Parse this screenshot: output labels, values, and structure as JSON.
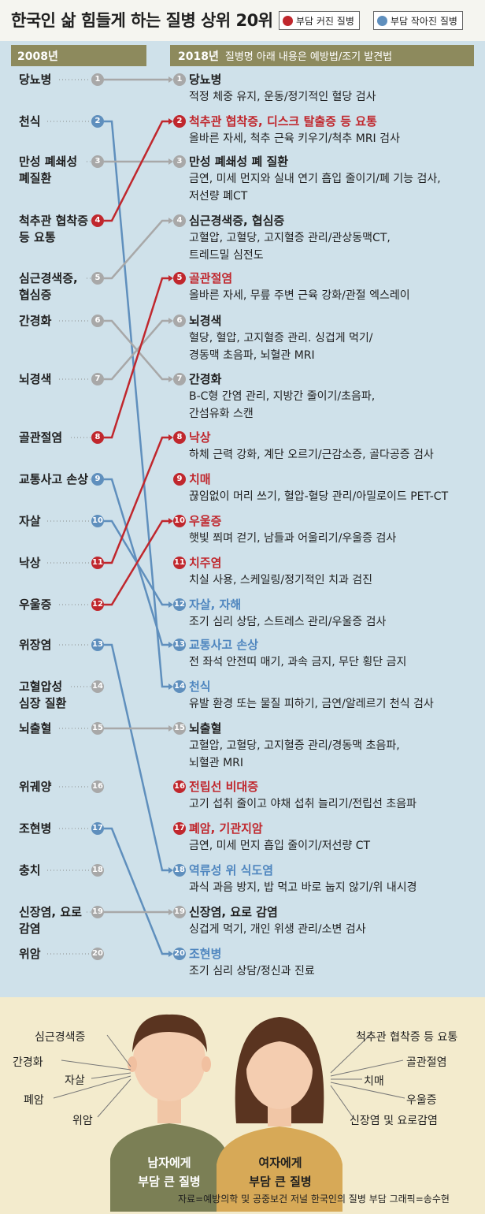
{
  "title": "한국인 삶 힘들게 하는 질병 상위 20위",
  "legend": {
    "increased": {
      "label": "부담 커진 질병",
      "color": "#c0272d"
    },
    "decreased": {
      "label": "부담 작아진 질병",
      "color": "#5f8fbd"
    }
  },
  "header": {
    "left": "2008년",
    "right": "2018년",
    "note": "질병명 아래 내용은 예방법/조기 발견법"
  },
  "colors": {
    "same": "#a8a8a8",
    "increased": "#c0272d",
    "decreased": "#5f8fbd",
    "background": "#cfe1ea",
    "header": "#8d8a5d"
  },
  "rank_2008": [
    {
      "rank": "1",
      "name": "당뇨병",
      "status": "same",
      "to": 1
    },
    {
      "rank": "2",
      "name": "천식",
      "status": "decreased",
      "to": 14
    },
    {
      "rank": "3",
      "name": "만성 폐쇄성\n폐질환",
      "status": "same",
      "to": 3
    },
    {
      "rank": "4",
      "name": "척추관 협착증\n등 요통",
      "status": "increased",
      "to": 2
    },
    {
      "rank": "5",
      "name": "심근경색증,\n협심증",
      "status": "same",
      "to": 4
    },
    {
      "rank": "6",
      "name": "간경화",
      "status": "same",
      "to": 7
    },
    {
      "rank": "7",
      "name": "뇌경색",
      "status": "same",
      "to": 6
    },
    {
      "rank": "8",
      "name": "골관절염",
      "status": "increased",
      "to": 5
    },
    {
      "rank": "9",
      "name": "교통사고 손상",
      "status": "decreased",
      "to": 13
    },
    {
      "rank": "10",
      "name": "자살",
      "status": "decreased",
      "to": 12
    },
    {
      "rank": "11",
      "name": "낙상",
      "status": "increased",
      "to": 8
    },
    {
      "rank": "12",
      "name": "우울증",
      "status": "increased",
      "to": 10
    },
    {
      "rank": "13",
      "name": "위장염",
      "status": "decreased",
      "to": 18
    },
    {
      "rank": "14",
      "name": "고혈압성\n심장 질환",
      "status": "same",
      "to": null
    },
    {
      "rank": "15",
      "name": "뇌출혈",
      "status": "same",
      "to": 15
    },
    {
      "rank": "16",
      "name": "위궤양",
      "status": "same",
      "to": null
    },
    {
      "rank": "17",
      "name": "조현병",
      "status": "decreased",
      "to": 20
    },
    {
      "rank": "18",
      "name": "충치",
      "status": "same",
      "to": null
    },
    {
      "rank": "19",
      "name": "신장염, 요로\n감염",
      "status": "same",
      "to": 19
    },
    {
      "rank": "20",
      "name": "위암",
      "status": "same",
      "to": null
    }
  ],
  "rank_2018": [
    {
      "rank": "1",
      "name": "당뇨병",
      "status": "same",
      "desc": "적정 체중 유지, 운동/정기적인 혈당 검사"
    },
    {
      "rank": "2",
      "name": "척추관 협착증, 디스크 탈출증 등 요통",
      "status": "increased",
      "desc": "올바른 자세, 척추 근육 키우기/척추 MRI 검사"
    },
    {
      "rank": "3",
      "name": "만성 폐쇄성 폐 질환",
      "status": "same",
      "desc": "금연, 미세 먼지와 실내 연기 흡입 줄이기/폐 기능 검사,\n저선량 폐CT"
    },
    {
      "rank": "4",
      "name": "심근경색증, 협심증",
      "status": "same",
      "desc": "고혈압, 고혈당, 고지혈증 관리/관상동맥CT,\n트레드밀 심전도"
    },
    {
      "rank": "5",
      "name": "골관절염",
      "status": "increased",
      "desc": "올바른 자세, 무릎 주변 근육 강화/관절 엑스레이"
    },
    {
      "rank": "6",
      "name": "뇌경색",
      "status": "same",
      "desc": "혈당, 혈압, 고지혈증 관리. 싱겁게 먹기/\n경동맥 초음파, 뇌혈관 MRI"
    },
    {
      "rank": "7",
      "name": "간경화",
      "status": "same",
      "desc": "B-C형 간염 관리, 지방간 줄이기/초음파,\n간섬유화 스캔"
    },
    {
      "rank": "8",
      "name": "낙상",
      "status": "increased",
      "desc": "하체 근력 강화, 계단 오르기/근감소증, 골다공증 검사"
    },
    {
      "rank": "9",
      "name": "치매",
      "status": "increased",
      "desc": "끊임없이 머리 쓰기, 혈압-혈당 관리/아밀로이드 PET-CT"
    },
    {
      "rank": "10",
      "name": "우울증",
      "status": "increased",
      "desc": "햇빛 쬐며 걷기, 남들과 어울리기/우울증 검사"
    },
    {
      "rank": "11",
      "name": "치주염",
      "status": "increased",
      "desc": "치실 사용, 스케일링/정기적인 치과 검진"
    },
    {
      "rank": "12",
      "name": "자살, 자해",
      "status": "decreased",
      "desc": "조기 심리 상담, 스트레스 관리/우울증 검사"
    },
    {
      "rank": "13",
      "name": "교통사고 손상",
      "status": "decreased",
      "desc": "전 좌석 안전띠 매기, 과속 금지, 무단 횡단 금지"
    },
    {
      "rank": "14",
      "name": "천식",
      "status": "decreased",
      "desc": "유발 환경 또는 물질 피하기, 금연/알레르기 천식 검사"
    },
    {
      "rank": "15",
      "name": "뇌출혈",
      "status": "same",
      "desc": "고혈압, 고혈당, 고지혈증 관리/경동맥 초음파,\n뇌혈관 MRI"
    },
    {
      "rank": "16",
      "name": "전립선 비대증",
      "status": "increased",
      "desc": "고기 섭취 줄이고 야채 섭취 늘리기/전립선 초음파"
    },
    {
      "rank": "17",
      "name": "폐암, 기관지암",
      "status": "increased",
      "desc": "금연, 미세 먼지 흡입 줄이기/저선량 CT"
    },
    {
      "rank": "18",
      "name": "역류성 위 식도염",
      "status": "decreased",
      "desc": "과식 과음 방지, 밥 먹고 바로 눕지 않기/위 내시경"
    },
    {
      "rank": "19",
      "name": "신장염, 요로 감염",
      "status": "same",
      "desc": "싱겁게 먹기, 개인 위생 관리/소변 검사"
    },
    {
      "rank": "20",
      "name": "조현병",
      "status": "decreased",
      "desc": "조기 심리 상담/정신과 진료"
    }
  ],
  "men": {
    "caption": "남자에게\n부담 큰 질병",
    "items": [
      "심근경색증",
      "간경화",
      "자살",
      "폐암",
      "위암"
    ]
  },
  "women": {
    "caption": "여자에게\n부담 큰 질병",
    "items": [
      "척추관 협착증 등 요통",
      "골관절염",
      "치매",
      "우울증",
      "신장염 및 요로감염"
    ]
  },
  "source": "자료=예방의학 및 공중보건 저널 한국인의 질병 부담     그래픽=송수현"
}
